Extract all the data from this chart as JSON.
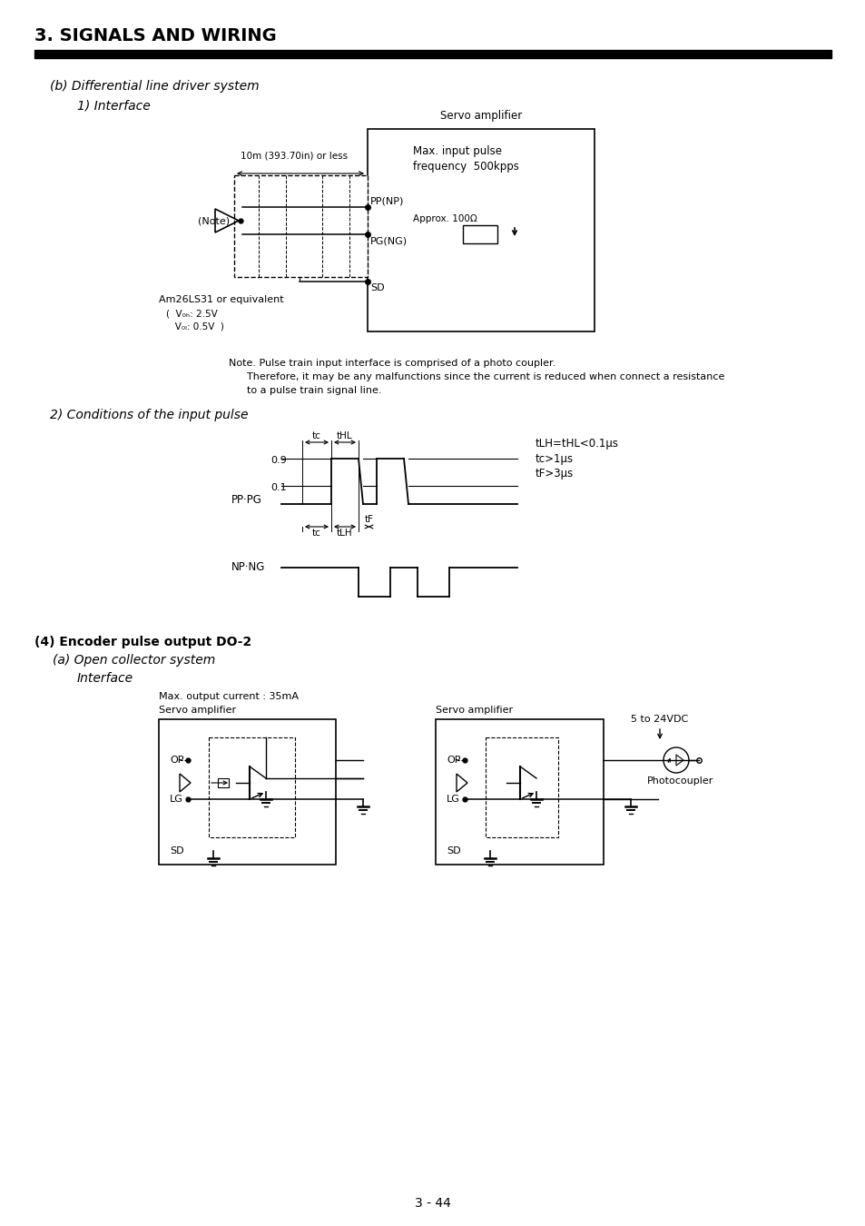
{
  "page_title": "3. SIGNALS AND WIRING",
  "page_number": "3 - 44",
  "bg_color": "#ffffff",
  "text_color": "#000000",
  "section_b_title": "(b) Differential line driver system",
  "section_b_sub": "1) Interface",
  "servo_amp_label": "Servo amplifier",
  "max_input_label": "Max. input pulse\nfrequency  500kpps",
  "cable_label": "10m (393.70in) or less",
  "note_label": "(Note)",
  "pp_label": "PP(NP)",
  "pg_label": "PG(NG)",
  "sd_label": "SD",
  "approx_label": "Approx. 100Ω",
  "am26_label": "Am26LS31 or equivalent",
  "voh_label": "V₀ₕ: 2.5V",
  "vol_label": "V₀ₗ: 0.5V",
  "note_text1": "Note. Pulse train input interface is comprised of a photo coupler.",
  "note_text2": "Therefore, it may be any malfunctions since the current is reduced when connect a resistance",
  "note_text3": "to a pulse train signal line.",
  "section_2_title": "2) Conditions of the input pulse",
  "pp_pg_label": "PP·PG",
  "np_ng_label": "NP·NG",
  "val_09": "0.9",
  "val_01": "0.1",
  "tc_label": "tc",
  "tHL_label": "tHL",
  "tLH_label": "tLH",
  "tF_label": "tF",
  "cond1": "tLH=tHL<0.1μs",
  "cond2": "tc>1μs",
  "cond3": "tF>3μs",
  "section_4_title": "(4) Encoder pulse output DO-2",
  "section_4a_title": "(a) Open collector system",
  "interface_label": "Interface",
  "max_out_label": "Max. output current : 35mA",
  "servo_amp1": "Servo amplifier",
  "servo_amp2": "Servo amplifier",
  "op_label1": "OP",
  "lg_label1": "LG",
  "sd_label1": "SD",
  "op_label2": "OP",
  "lg_label2": "LG",
  "sd_label2": "SD",
  "vdc_label": "5 to 24VDC",
  "photocoupler_label": "Photocoupler"
}
